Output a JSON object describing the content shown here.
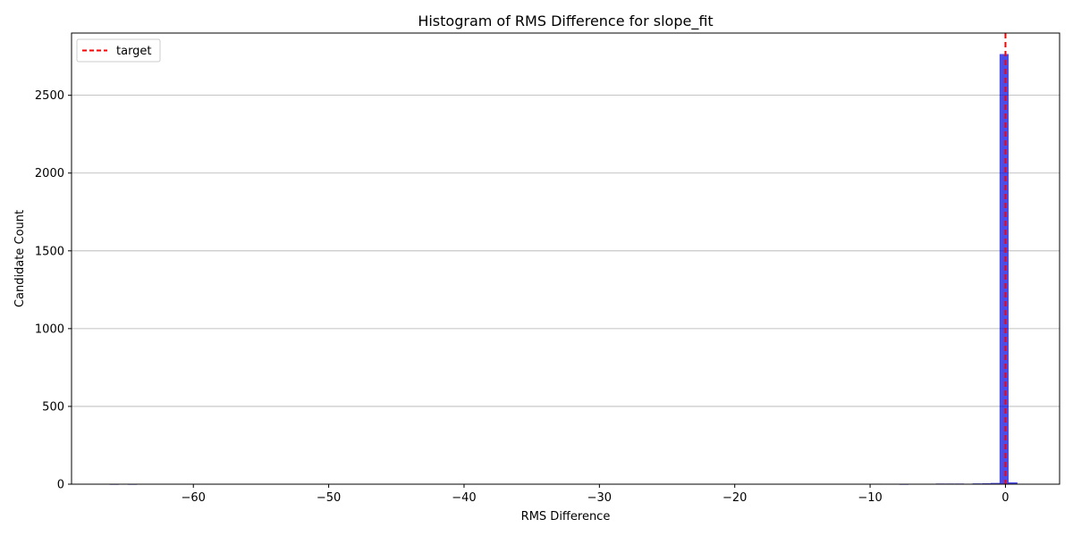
{
  "chart_data": {
    "type": "bar",
    "title": "Histogram of RMS Difference for slope_fit",
    "xlabel": "RMS Difference",
    "ylabel": "Candidate Count",
    "xlim": [
      -69,
      4
    ],
    "ylim": [
      0,
      2900
    ],
    "xticks": [
      -60,
      -50,
      -40,
      -30,
      -20,
      -10,
      0
    ],
    "xtick_labels": [
      "−60",
      "−50",
      "−40",
      "−30",
      "−20",
      "−10",
      "0"
    ],
    "yticks": [
      0,
      500,
      1000,
      1500,
      2000,
      2500
    ],
    "ytick_labels": [
      "0",
      "500",
      "1000",
      "1500",
      "2000",
      "2500"
    ],
    "grid": "y",
    "legend_position": "top-left",
    "bin_width": 0.67,
    "bins": [
      {
        "x": -65.85,
        "count": 2
      },
      {
        "x": -64.5,
        "count": 2
      },
      {
        "x": -9.5,
        "count": 3
      },
      {
        "x": -7.5,
        "count": 2
      },
      {
        "x": -4.8,
        "count": 4
      },
      {
        "x": -4.1,
        "count": 4
      },
      {
        "x": -3.4,
        "count": 4
      },
      {
        "x": -2.1,
        "count": 5
      },
      {
        "x": -1.4,
        "count": 6
      },
      {
        "x": -0.75,
        "count": 8
      },
      {
        "x": -0.1,
        "count": 2765
      },
      {
        "x": 0.55,
        "count": 12
      }
    ],
    "bar_color": "#0000dd",
    "series": [
      {
        "name": "target",
        "type": "vline",
        "x": 0,
        "color": "#ff0000",
        "style": "dashed"
      }
    ]
  }
}
